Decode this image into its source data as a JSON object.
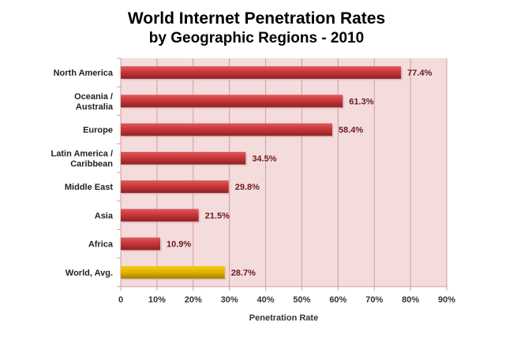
{
  "chart_data": {
    "type": "bar",
    "orientation": "horizontal",
    "title": "World Internet Penetration Rates",
    "subtitle": "by Geographic Regions - 2010",
    "xlabel": "Penetration Rate",
    "ylabel": "",
    "categories": [
      "North America",
      "Oceania / Australia",
      "Europe",
      "Latin America / Caribbean",
      "Middle East",
      "Asia",
      "Africa",
      "World, Avg."
    ],
    "values": [
      77.4,
      61.3,
      58.4,
      34.5,
      29.8,
      21.5,
      10.9,
      28.7
    ],
    "data_labels": [
      "77.4%",
      "61.3%",
      "58.4%",
      "34.5%",
      "29.8%",
      "21.5%",
      "10.9%",
      "28.7%"
    ],
    "xlim": [
      0,
      90
    ],
    "xticks": [
      0,
      10,
      20,
      30,
      40,
      50,
      60,
      70,
      80,
      90
    ],
    "xtick_labels": [
      "0",
      "10%",
      "20%",
      "30%",
      "40%",
      "50%",
      "60%",
      "70%",
      "80%",
      "90%"
    ],
    "grid": "vertical",
    "legend": "none",
    "colors": {
      "bar": "#c8373a",
      "highlight_bar": "#e0b000",
      "plot_bg": "#f4dcdd",
      "grid": "#d49a9c",
      "data_label": "#6b1a1a"
    }
  }
}
